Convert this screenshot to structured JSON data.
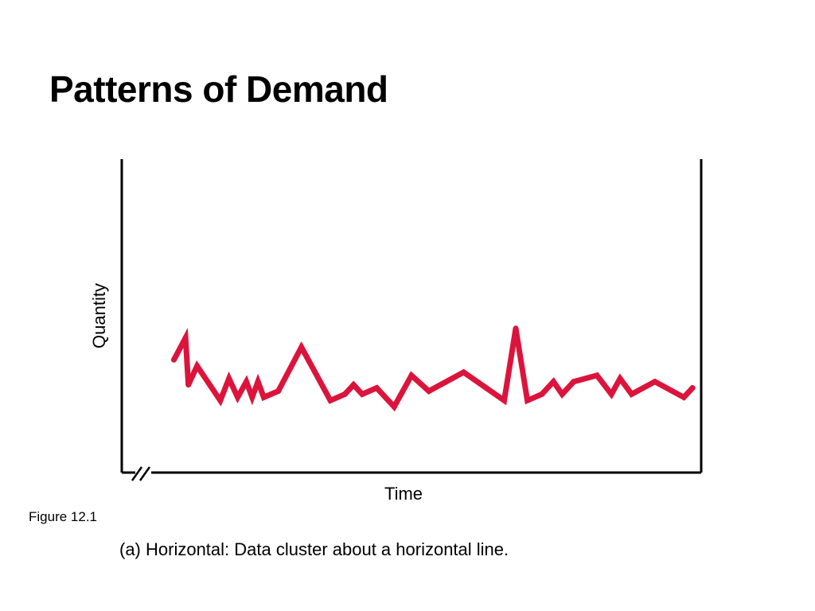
{
  "slide": {
    "title": "Patterns of Demand",
    "figure_number": "Figure 12.1",
    "caption": "(a) Horizontal: Data cluster about a horizontal line."
  },
  "colors": {
    "series": "#dc143c",
    "axis": "#000000"
  },
  "chart_data": {
    "type": "line",
    "title": "",
    "xlabel": "Time",
    "ylabel": "Quantity",
    "x_ticks": false,
    "y_ticks": false,
    "grid": false,
    "legend": "none",
    "axis_break": "x-axis",
    "xlim": [
      0,
      100
    ],
    "ylim": [
      0,
      100
    ],
    "series": [
      {
        "x": [
          9,
          11,
          11.5,
          13,
          17,
          18.5,
          20,
          21.5,
          22.5,
          23.5,
          24.5,
          27,
          31,
          36,
          38.5,
          40,
          41.5,
          44,
          47,
          50,
          53,
          59,
          66,
          68,
          70,
          72.5,
          74.5,
          76,
          78,
          82,
          84.5,
          86,
          88,
          92,
          97,
          98.5
        ],
        "y": [
          36,
          43,
          28,
          34,
          23,
          30,
          24,
          29,
          24,
          29,
          24,
          26,
          40,
          23,
          25,
          28,
          25,
          27,
          21,
          31,
          26,
          32,
          23,
          46,
          23,
          25,
          29,
          25,
          29,
          31,
          25,
          30,
          25,
          29,
          24,
          27
        ]
      }
    ]
  }
}
